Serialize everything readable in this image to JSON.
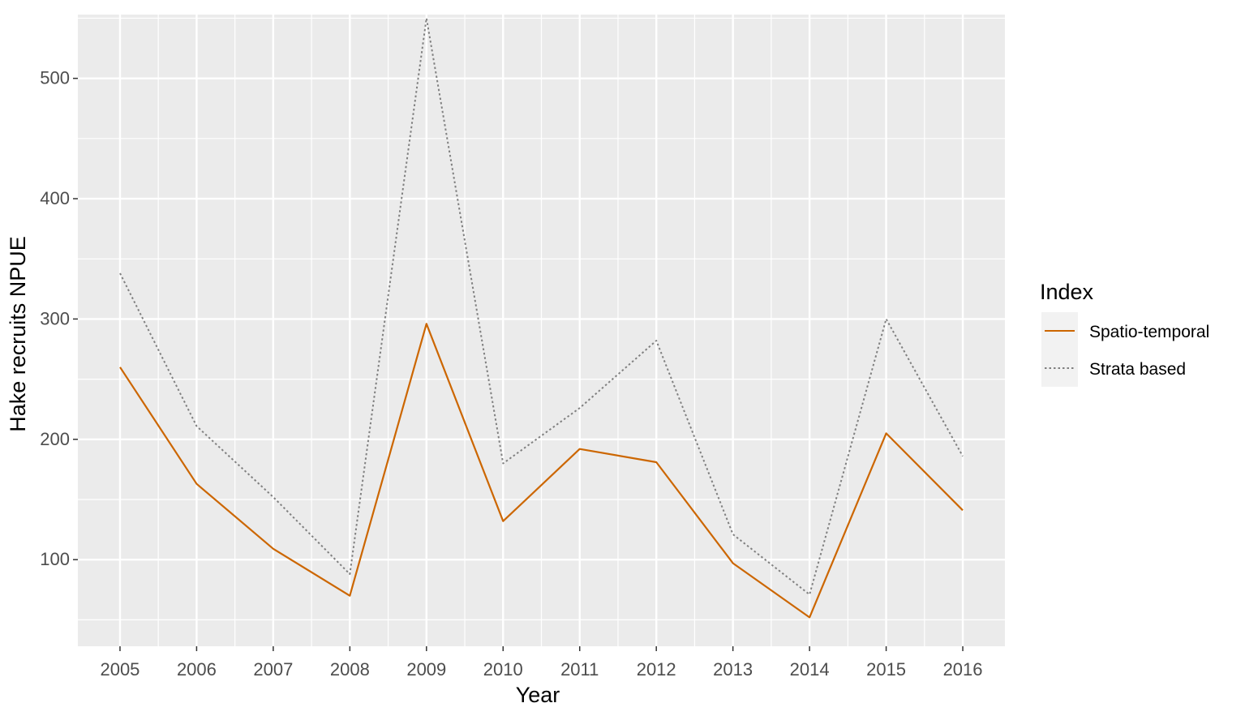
{
  "chart_data": {
    "type": "line",
    "xlabel": "Year",
    "ylabel": "Hake recruits NPUE",
    "x": [
      2005,
      2006,
      2007,
      2008,
      2009,
      2010,
      2011,
      2012,
      2013,
      2014,
      2015,
      2016
    ],
    "xlim": [
      2004.45,
      2016.55
    ],
    "ylim": [
      28,
      553
    ],
    "yticks": [
      100,
      200,
      300,
      400,
      500
    ],
    "grid": true,
    "legend": {
      "title": "Index",
      "position": "right"
    },
    "series": [
      {
        "name": "Spatio-temporal",
        "color": "#cc6600",
        "linestyle": "solid",
        "values": [
          260,
          163,
          109,
          70,
          296,
          132,
          192,
          181,
          97,
          52,
          205,
          141
        ]
      },
      {
        "name": "Strata based",
        "color": "#808080",
        "linestyle": "dotted",
        "values": [
          338,
          211,
          152,
          88,
          550,
          180,
          226,
          282,
          121,
          71,
          300,
          186
        ]
      }
    ],
    "colors": {
      "panel": "#ebebeb",
      "grid": "#ffffff",
      "legend_key": "#f2f2f2"
    }
  }
}
